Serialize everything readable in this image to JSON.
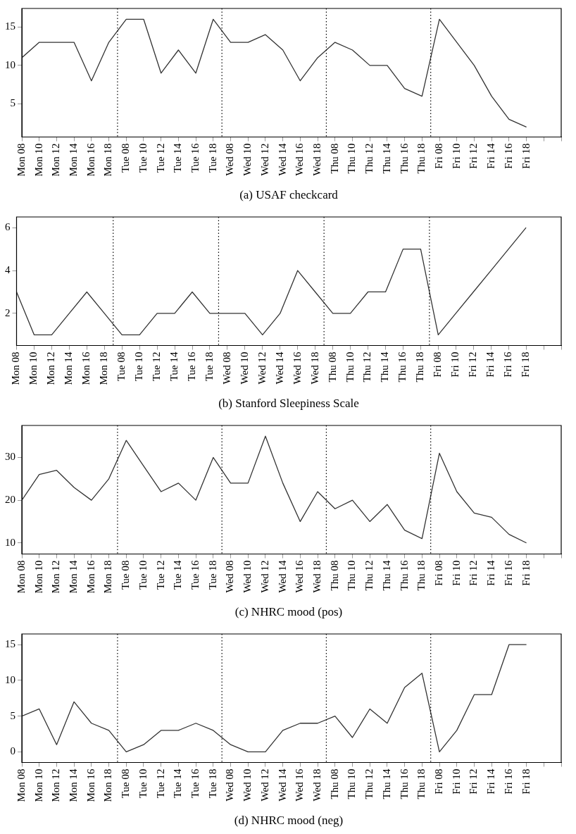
{
  "chart_data": [
    {
      "type": "line",
      "title": "(a) USAF checkcard",
      "categories": [
        "Mon 08",
        "Mon 10",
        "Mon 12",
        "Mon 14",
        "Mon 16",
        "Mon 18",
        "Tue 08",
        "Tue 10",
        "Tue 12",
        "Tue 14",
        "Tue 16",
        "Tue 18",
        "Wed 08",
        "Wed 10",
        "Wed 12",
        "Wed 14",
        "Wed 16",
        "Wed 18",
        "Thu 08",
        "Thu 10",
        "Thu 12",
        "Thu 14",
        "Thu 16",
        "Thu 18",
        "Fri 08",
        "Fri 10",
        "Fri 12",
        "Fri 14",
        "Fri 16",
        "Fri 18",
        null,
        null
      ],
      "series": [
        {
          "color": "#333333",
          "values": [
            11,
            13,
            13,
            13,
            8,
            13,
            16,
            16,
            9,
            12,
            9,
            16,
            13,
            13,
            14,
            12,
            8,
            11,
            13,
            12,
            10,
            10,
            7,
            6,
            16,
            13,
            10,
            6,
            3,
            2,
            null,
            null
          ]
        }
      ],
      "ylim": [
        0.7,
        17.4
      ],
      "yticks": [
        5,
        10,
        15
      ],
      "grid": false,
      "legend": false,
      "marker": "none",
      "line_style": "solid"
    },
    {
      "type": "line",
      "title": "(b) Stanford Sleepiness Scale",
      "categories": [
        "Mon 08",
        "Mon 10",
        "Mon 12",
        "Mon 14",
        "Mon 16",
        "Mon 18",
        "Tue 08",
        "Tue 10",
        "Tue 12",
        "Tue 14",
        "Tue 16",
        "Tue 18",
        "Wed 08",
        "Wed 10",
        "Wed 12",
        "Wed 14",
        "Wed 16",
        "Wed 18",
        "Thu 08",
        "Thu 10",
        "Thu 12",
        "Thu 14",
        "Thu 16",
        "Thu 18",
        "Fri 08",
        "Fri 10",
        "Fri 12",
        "Fri 14",
        "Fri 16",
        "Fri 18",
        null,
        null
      ],
      "series": [
        {
          "color": "#333333",
          "values": [
            3,
            1,
            1,
            2,
            3,
            2,
            1,
            1,
            2,
            2,
            3,
            2,
            2,
            2,
            1,
            2,
            4,
            3,
            2,
            2,
            3,
            3,
            5,
            5,
            1,
            2,
            3,
            4,
            5,
            6,
            null,
            null
          ]
        }
      ],
      "ylim": [
        0.5,
        6.5
      ],
      "yticks": [
        2,
        4,
        6
      ],
      "grid": false,
      "legend": false,
      "marker": "none",
      "line_style": "solid"
    },
    {
      "type": "line",
      "title": "(c) NHRC mood (pos)",
      "categories": [
        "Mon 08",
        "Mon 10",
        "Mon 12",
        "Mon 14",
        "Mon 16",
        "Mon 18",
        "Tue 08",
        "Tue 10",
        "Tue 12",
        "Tue 14",
        "Tue 16",
        "Tue 18",
        "Wed 08",
        "Wed 10",
        "Wed 12",
        "Wed 14",
        "Wed 16",
        "Wed 18",
        "Thu 08",
        "Thu 10",
        "Thu 12",
        "Thu 14",
        "Thu 16",
        "Thu 18",
        "Fri 08",
        "Fri 10",
        "Fri 12",
        "Fri 14",
        "Fri 16",
        "Fri 18",
        null,
        null
      ],
      "series": [
        {
          "color": "#333333",
          "values": [
            20,
            26,
            27,
            23,
            20,
            25,
            34,
            28,
            22,
            24,
            20,
            30,
            24,
            24,
            35,
            24,
            15,
            22,
            18,
            20,
            15,
            19,
            13,
            11,
            31,
            22,
            17,
            16,
            12,
            10,
            null,
            null
          ]
        }
      ],
      "ylim": [
        7.4,
        37.5
      ],
      "yticks": [
        10,
        20,
        30
      ],
      "grid": false,
      "legend": false,
      "marker": "none",
      "line_style": "solid"
    },
    {
      "type": "line",
      "title": "(d) NHRC mood (neg)",
      "categories": [
        "Mon 08",
        "Mon 10",
        "Mon 12",
        "Mon 14",
        "Mon 16",
        "Mon 18",
        "Tue 08",
        "Tue 10",
        "Tue 12",
        "Tue 14",
        "Tue 16",
        "Tue 18",
        "Wed 08",
        "Wed 10",
        "Wed 12",
        "Wed 14",
        "Wed 16",
        "Wed 18",
        "Thu 08",
        "Thu 10",
        "Thu 12",
        "Thu 14",
        "Thu 16",
        "Thu 18",
        "Fri 08",
        "Fri 10",
        "Fri 12",
        "Fri 14",
        "Fri 16",
        "Fri 18",
        null,
        null
      ],
      "series": [
        {
          "color": "#333333",
          "values": [
            5,
            6,
            1,
            7,
            4,
            3,
            0,
            1,
            3,
            3,
            4,
            3,
            1,
            0,
            0,
            3,
            4,
            4,
            5,
            2,
            6,
            4,
            9,
            11,
            0,
            3,
            8,
            8,
            15,
            15,
            null,
            null
          ]
        }
      ],
      "ylim": [
        -1.5,
        16.5
      ],
      "yticks": [
        0,
        5,
        10,
        15
      ],
      "grid": false,
      "legend": false,
      "marker": "none",
      "line_style": "solid"
    }
  ]
}
